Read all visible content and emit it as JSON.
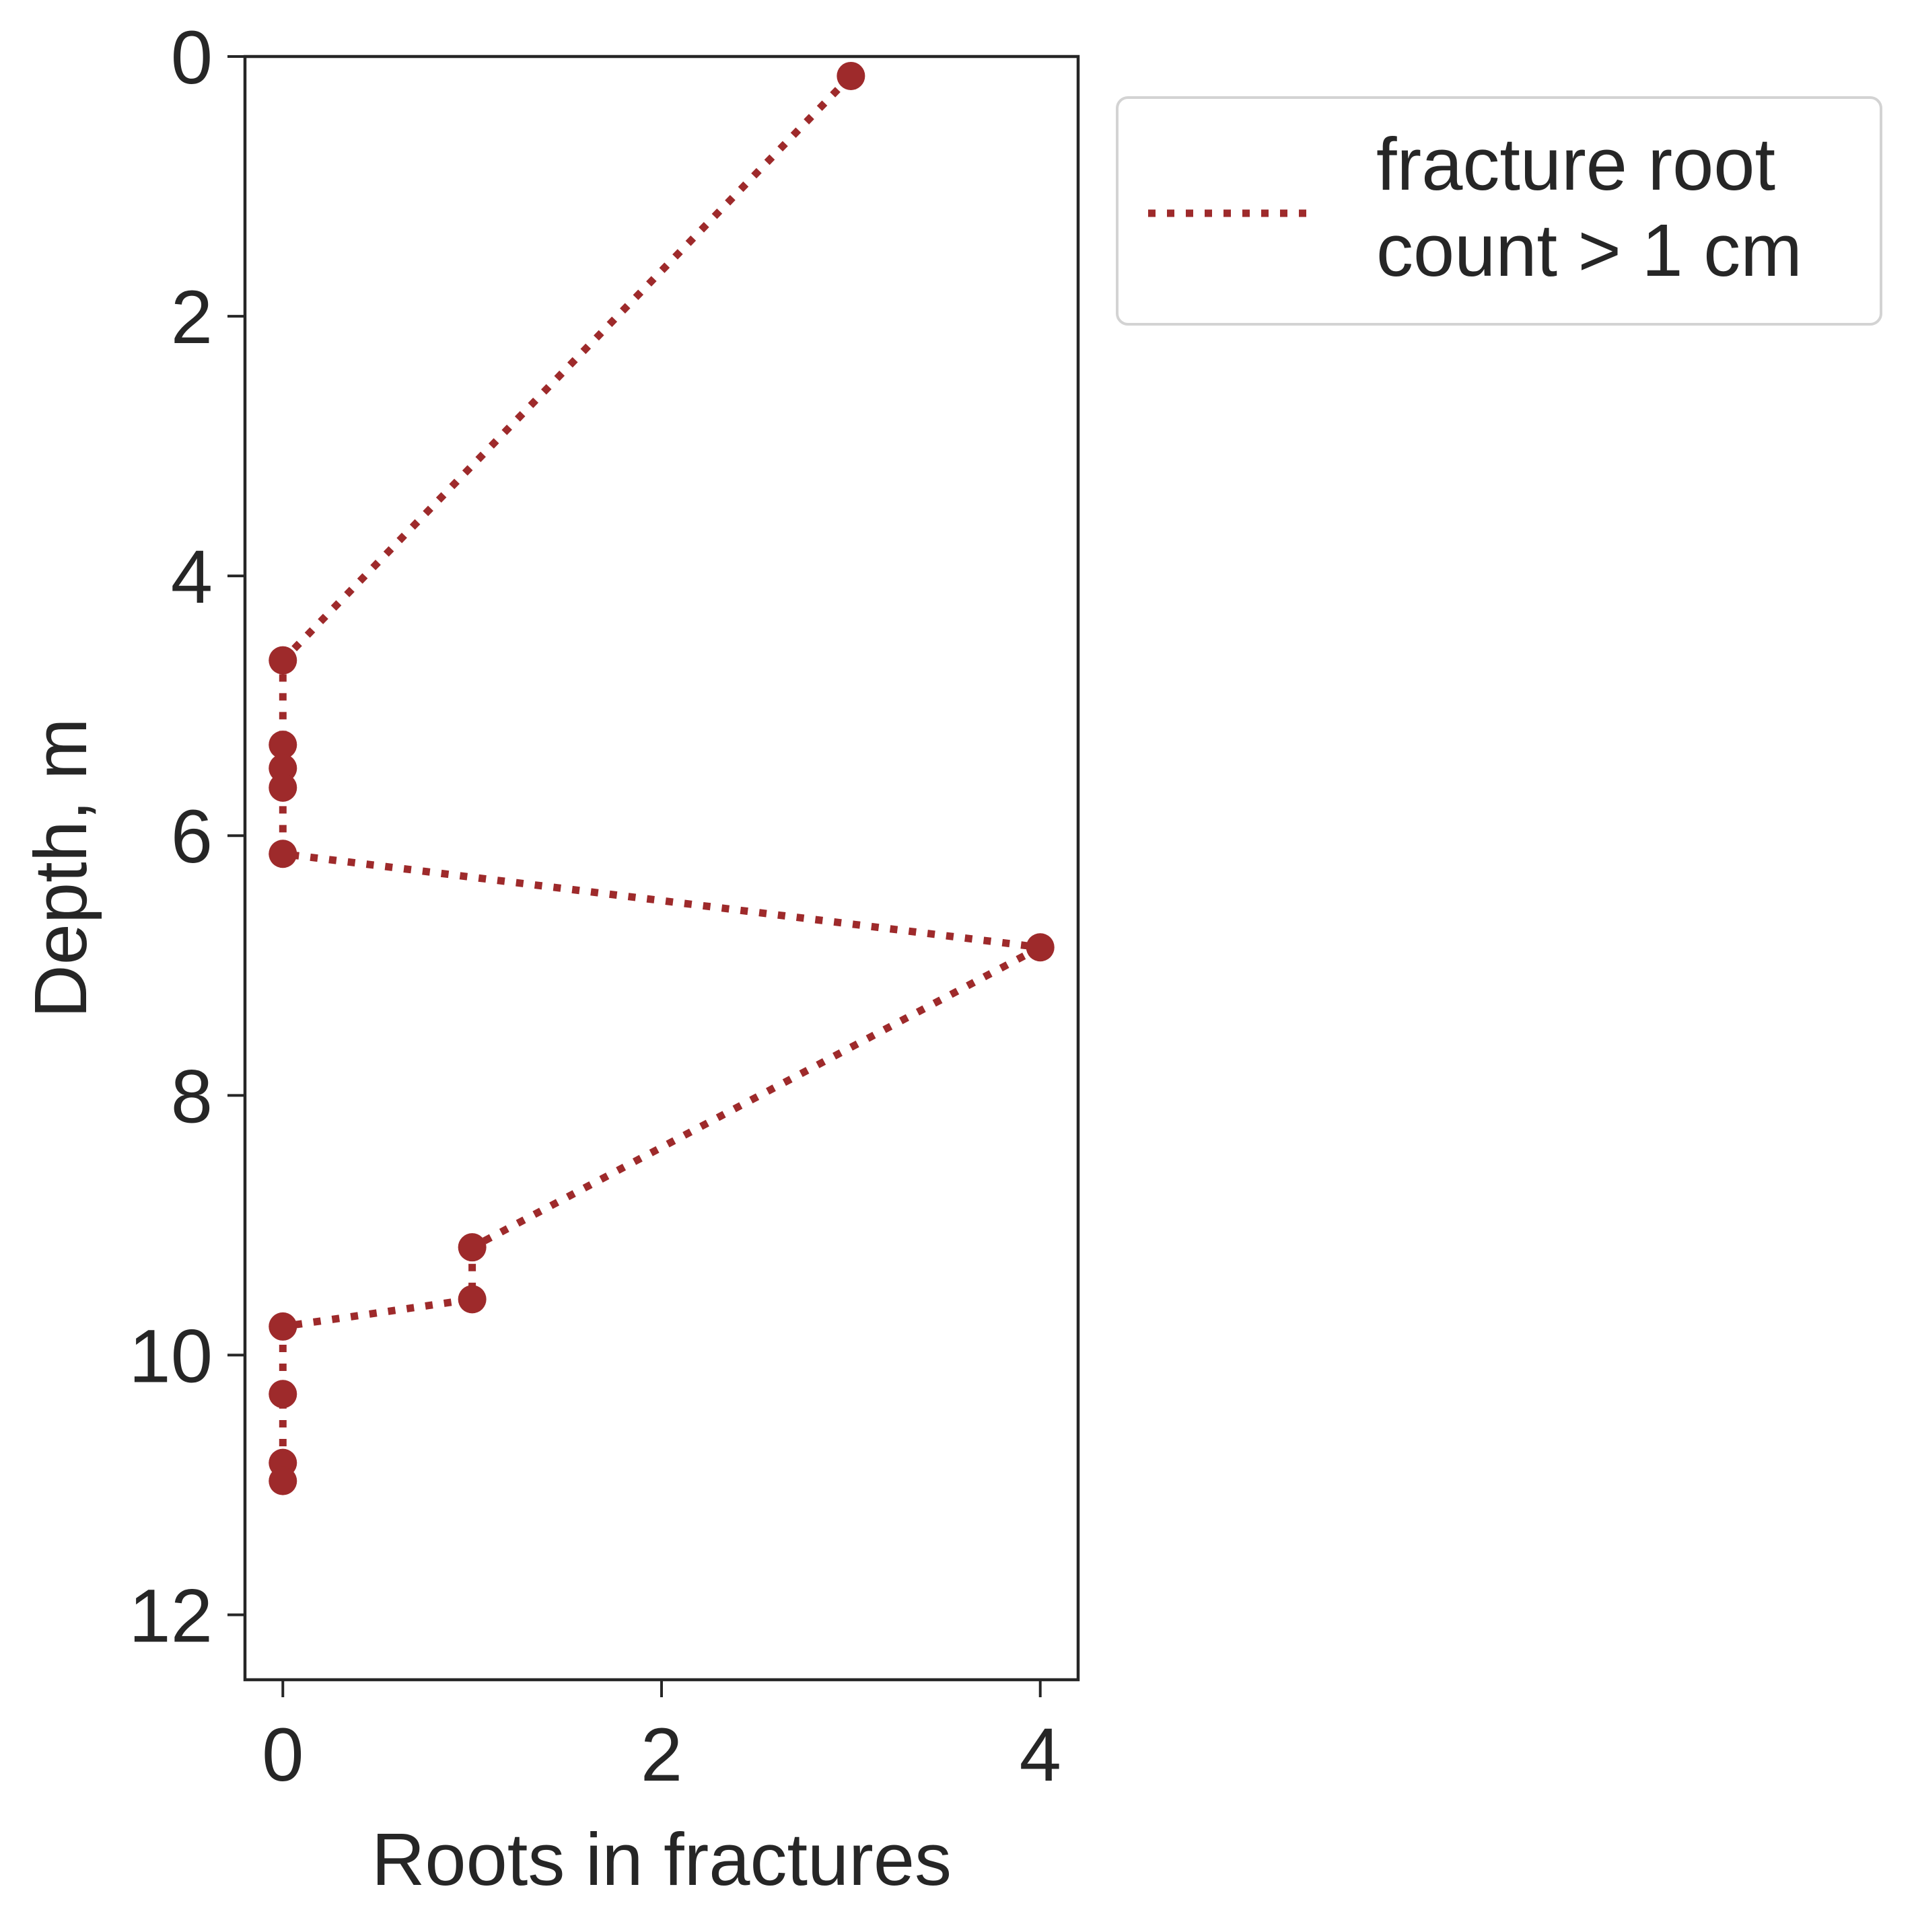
{
  "chart_data": {
    "type": "line",
    "xlabel": "Roots in fractures",
    "ylabel": "Depth, m",
    "xlim": [
      -0.2,
      4.2
    ],
    "ylim": [
      12.5,
      0
    ],
    "y_inverted": true,
    "xticks": [
      0,
      2,
      4
    ],
    "yticks": [
      0,
      2,
      4,
      6,
      8,
      10,
      12
    ],
    "grid": false,
    "legend_placement": "outside upper right",
    "series": [
      {
        "name": "fracture root\ncount > 1 cm",
        "line_style": "dotted",
        "marker": "circle",
        "color": "#9e2a2b",
        "points": [
          {
            "x": 3,
            "y": 0.15
          },
          {
            "x": 0,
            "y": 4.65
          },
          {
            "x": 0,
            "y": 5.3
          },
          {
            "x": 0,
            "y": 5.48
          },
          {
            "x": 0,
            "y": 5.63
          },
          {
            "x": 0,
            "y": 6.14
          },
          {
            "x": 4,
            "y": 6.86
          },
          {
            "x": 1,
            "y": 9.17
          },
          {
            "x": 1,
            "y": 9.57
          },
          {
            "x": 0,
            "y": 9.78
          },
          {
            "x": 0,
            "y": 10.3
          },
          {
            "x": 0,
            "y": 10.83
          },
          {
            "x": 0,
            "y": 10.97
          }
        ]
      }
    ]
  }
}
